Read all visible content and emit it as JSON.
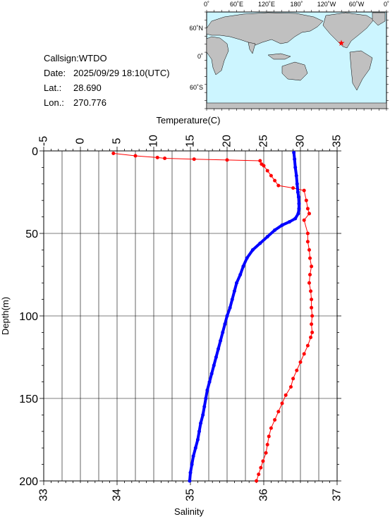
{
  "station": {
    "callsign_label": "Callsign:",
    "callsign": "WTDO",
    "date_label": "Date:",
    "date": "2025/09/29 18:10(UTC)",
    "lat_label": "Lat.:",
    "lat": "28.690",
    "lon_label": "Lon.:",
    "lon": "270.776"
  },
  "map": {
    "lon_labels": [
      "0˚",
      "60˚E",
      "120˚E",
      "180˚",
      "120˚W",
      "60˚W",
      "0˚"
    ],
    "lat_labels": [
      "60˚N",
      "0˚",
      "60˚S"
    ],
    "ocean_color": "#ccf5ff",
    "land_color": "#c0c0c0",
    "marker_color": "#ff0000"
  },
  "chart_data": {
    "type": "line",
    "xlabel_top": "Temperature(C)",
    "xlabel_bottom": "Salinity",
    "ylabel": "Depth(m)",
    "temperature_ticks": [
      "-5",
      "0",
      "5",
      "10",
      "15",
      "20",
      "25",
      "30",
      "35"
    ],
    "salinity_ticks": [
      "33",
      "34",
      "35",
      "36",
      "37"
    ],
    "depth_ticks": [
      "0",
      "50",
      "100",
      "150",
      "200"
    ],
    "temperature_range": [
      -5,
      35
    ],
    "salinity_range": [
      33,
      37
    ],
    "depth_range": [
      0,
      200
    ],
    "grid": true,
    "series": [
      {
        "axis": "salinity",
        "color": "#ff0000",
        "points": [
          [
            33.95,
            1.5
          ],
          [
            34.25,
            3
          ],
          [
            34.55,
            4
          ],
          [
            34.65,
            4.5
          ],
          [
            35.05,
            5
          ],
          [
            35.5,
            5.5
          ],
          [
            35.95,
            6
          ],
          [
            35.97,
            8
          ],
          [
            36.0,
            9
          ],
          [
            36.05,
            12
          ],
          [
            36.1,
            15
          ],
          [
            36.15,
            18
          ],
          [
            36.2,
            21
          ],
          [
            36.4,
            22.5
          ],
          [
            36.55,
            24
          ],
          [
            36.58,
            30
          ],
          [
            36.6,
            35
          ],
          [
            36.62,
            38
          ],
          [
            36.55,
            42
          ],
          [
            36.6,
            50
          ],
          [
            36.6,
            55
          ],
          [
            36.62,
            60
          ],
          [
            36.63,
            65
          ],
          [
            36.65,
            70
          ],
          [
            36.63,
            75
          ],
          [
            36.62,
            80
          ],
          [
            36.64,
            85
          ],
          [
            36.65,
            90
          ],
          [
            36.65,
            95
          ],
          [
            36.66,
            100
          ],
          [
            36.65,
            105
          ],
          [
            36.66,
            110
          ],
          [
            36.64,
            113
          ],
          [
            36.6,
            118
          ],
          [
            36.55,
            123
          ],
          [
            36.5,
            128
          ],
          [
            36.45,
            133
          ],
          [
            36.4,
            138
          ],
          [
            36.37,
            143
          ],
          [
            36.3,
            148
          ],
          [
            36.25,
            153
          ],
          [
            36.2,
            158
          ],
          [
            36.15,
            163
          ],
          [
            36.1,
            168
          ],
          [
            36.07,
            173
          ],
          [
            36.05,
            178
          ],
          [
            36.03,
            183
          ],
          [
            35.99,
            188
          ],
          [
            35.96,
            192
          ],
          [
            35.93,
            196
          ],
          [
            35.9,
            200
          ]
        ]
      },
      {
        "axis": "temperature",
        "color": "#0000ff",
        "points": [
          [
            29.1,
            1
          ],
          [
            29.2,
            5
          ],
          [
            29.3,
            10
          ],
          [
            29.45,
            15
          ],
          [
            29.55,
            20
          ],
          [
            29.65,
            25
          ],
          [
            29.75,
            28
          ],
          [
            29.8,
            32
          ],
          [
            29.8,
            35
          ],
          [
            29.7,
            38
          ],
          [
            29.3,
            41
          ],
          [
            28.5,
            43
          ],
          [
            27.5,
            45
          ],
          [
            26.5,
            48
          ],
          [
            25.5,
            52
          ],
          [
            24.5,
            56
          ],
          [
            23.5,
            60
          ],
          [
            22.7,
            65
          ],
          [
            22.2,
            70
          ],
          [
            21.8,
            75
          ],
          [
            21.3,
            80
          ],
          [
            21.0,
            85
          ],
          [
            20.7,
            90
          ],
          [
            20.4,
            95
          ],
          [
            20.0,
            100
          ],
          [
            19.7,
            105
          ],
          [
            19.4,
            110
          ],
          [
            19.1,
            115
          ],
          [
            18.8,
            120
          ],
          [
            18.5,
            125
          ],
          [
            18.2,
            130
          ],
          [
            17.9,
            135
          ],
          [
            17.6,
            140
          ],
          [
            17.3,
            145
          ],
          [
            17.1,
            150
          ],
          [
            16.9,
            155
          ],
          [
            16.7,
            160
          ],
          [
            16.4,
            165
          ],
          [
            16.2,
            170
          ],
          [
            16.0,
            175
          ],
          [
            15.7,
            180
          ],
          [
            15.4,
            185
          ],
          [
            15.2,
            190
          ],
          [
            15.0,
            195
          ],
          [
            14.9,
            200
          ]
        ]
      }
    ]
  }
}
